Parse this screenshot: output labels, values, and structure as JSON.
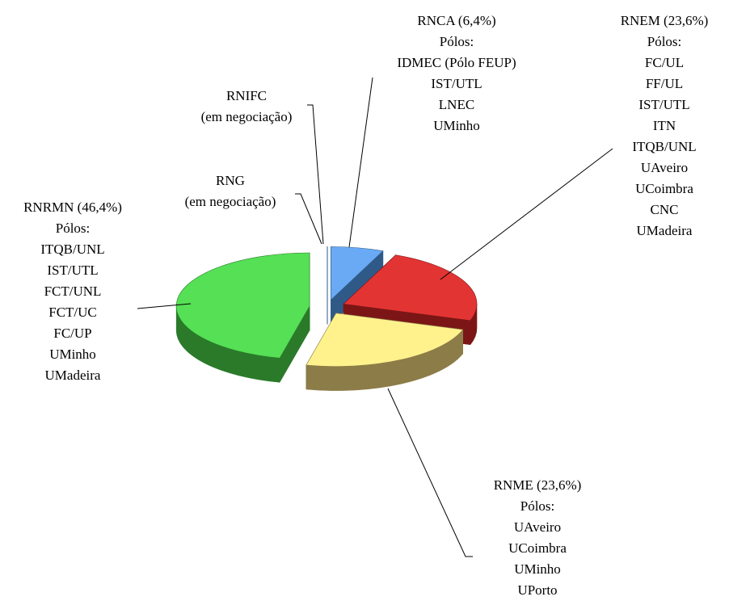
{
  "chart_data": {
    "type": "pie",
    "categories": [
      "RNCA (6,4%)",
      "RNEM (23,6%)",
      "RNME (23,6%)",
      "RNRMN (46,4%)",
      "RNG",
      "RNIFC"
    ],
    "details": [
      [
        "Pólos:",
        "IDMEC (Pólo FEUP)",
        "IST/UTL",
        "LNEC",
        "UMinho"
      ],
      [
        "Pólos:",
        "FC/UL",
        "FF/UL",
        "IST/UTL",
        "ITN",
        "ITQB/UNL",
        "UAveiro",
        "UCoimbra",
        "CNC",
        "UMadeira"
      ],
      [
        "Pólos:",
        "UAveiro",
        "UCoimbra",
        "UMinho",
        "UPorto"
      ],
      [
        "Pólos:",
        "ITQB/UNL",
        "IST/UTL",
        "FCT/UNL",
        "FCT/UC",
        "FC/UP",
        "UMinho",
        "UMadeira"
      ],
      [
        "(em negociação)"
      ],
      [
        "(em negociação)"
      ]
    ],
    "values": [
      6.4,
      23.6,
      23.6,
      46.4,
      0,
      0
    ],
    "colors": [
      "#6aaaf5",
      "#e33434",
      "#fff28c",
      "#55e055",
      "#6aaaf5",
      "#6aaaf5"
    ],
    "side_colors": [
      "#2f5a88",
      "#7c1616",
      "#8c7c48",
      "#2a7a2a",
      "#2f5a88",
      "#2f5a88"
    ],
    "exploded": true
  }
}
